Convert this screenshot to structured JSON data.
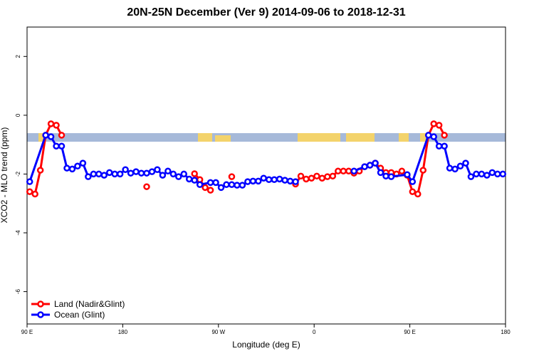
{
  "chart_data": {
    "type": "line",
    "title": "20N-25N December (Ver 9)   2014-09-06 to 2018-12-31",
    "xlabel": "Longitude (deg E)",
    "ylabel": "XCO2 - MLO trend (ppm)",
    "xlim": [
      90,
      540
    ],
    "ylim": [
      -7.1,
      3.0
    ],
    "xticks": [
      {
        "value": 90,
        "label": "90 E"
      },
      180,
      {
        "value": 270,
        "label": "90 W"
      },
      {
        "value": 360,
        "label": "0"
      },
      {
        "value": 450,
        "label": "90 E"
      },
      {
        "value": 540,
        "label": "180"
      }
    ],
    "yticks": [
      2,
      0,
      -2,
      -4,
      -6
    ],
    "legend": "bottom-left",
    "series": [
      {
        "name": "Land (Nadir&Glint)",
        "color": "#ff0000",
        "x": [
          92.5,
          97.5,
          102.5,
          107.5,
          112.5,
          117.5,
          122.5,
          127.5,
          202.5,
          207.5,
          247.5,
          252.5,
          257.5,
          262.5,
          267.5,
          282.5,
          287.5,
          342.5,
          347.5,
          352.5,
          357.5,
          362.5,
          367.5,
          372.5,
          377.5,
          382.5,
          387.5,
          392.5,
          397.5,
          402.5,
          407.5,
          412.5,
          417.5,
          422.5,
          427.5,
          432.5,
          437.5,
          442.5,
          447.5,
          452.5,
          457.5,
          462.5,
          467.5,
          472.5,
          477.5,
          482.5
        ],
        "values": [
          -2.6,
          -2.68,
          -1.87,
          -0.68,
          -0.29,
          -0.34,
          -0.68,
          null,
          -2.43,
          null,
          -1.99,
          -2.19,
          -2.46,
          -2.55,
          null,
          -2.09,
          null,
          -2.34,
          -2.07,
          -2.17,
          -2.14,
          -2.07,
          -2.14,
          -2.09,
          -2.07,
          -1.9,
          -1.9,
          -1.9,
          -1.97,
          -1.9,
          -1.75,
          -1.7,
          -1.63,
          -1.8,
          -1.95,
          -1.95,
          -2.0,
          -1.9,
          -2.04,
          -2.6,
          -2.68,
          -1.87,
          -0.68,
          -0.29,
          -0.34,
          -0.68
        ]
      },
      {
        "name": "Ocean (Glint)",
        "color": "#0000ff",
        "x": [
          92.5,
          107.5,
          112.5,
          117.5,
          122.5,
          127.5,
          132.5,
          137.5,
          142.5,
          147.5,
          152.5,
          157.5,
          162.5,
          167.5,
          172.5,
          177.5,
          182.5,
          187.5,
          192.5,
          197.5,
          202.5,
          207.5,
          212.5,
          217.5,
          222.5,
          227.5,
          232.5,
          237.5,
          242.5,
          247.5,
          252.5,
          262.5,
          267.5,
          272.5,
          277.5,
          282.5,
          287.5,
          292.5,
          297.5,
          302.5,
          307.5,
          312.5,
          317.5,
          322.5,
          327.5,
          332.5,
          337.5,
          342.5,
          370,
          397.5,
          407.5,
          412.5,
          417.5,
          422.5,
          427.5,
          432.5,
          447.5,
          452.5,
          467.5,
          472.5,
          477.5,
          482.5,
          487.5,
          492.5,
          497.5,
          502.5,
          507.5,
          512.5,
          517.5,
          522.5,
          527.5,
          532.5,
          537.5
        ],
        "values": [
          -2.26,
          -0.68,
          -0.73,
          -1.05,
          -1.05,
          -1.8,
          -1.83,
          -1.73,
          -1.63,
          -2.09,
          -2.0,
          -2.0,
          -2.04,
          -1.95,
          -2.0,
          -2.0,
          -1.85,
          -1.97,
          -1.92,
          -1.97,
          -1.97,
          -1.92,
          -1.85,
          -2.04,
          -1.9,
          -2.0,
          -2.09,
          -2.0,
          -2.17,
          -2.21,
          -2.36,
          -2.29,
          -2.29,
          -2.46,
          -2.36,
          -2.36,
          -2.38,
          -2.38,
          -2.26,
          -2.24,
          -2.24,
          -2.14,
          -2.19,
          -2.19,
          -2.17,
          -2.21,
          -2.24,
          -2.26,
          null,
          -1.9,
          -1.75,
          -1.7,
          -1.63,
          -1.95,
          -2.07,
          -2.09,
          -2.02,
          -2.26,
          -0.68,
          -0.73,
          -1.05,
          -1.05,
          -1.8,
          -1.83,
          -1.73,
          -1.63,
          -2.09,
          -2.0,
          -2.0,
          -2.04,
          -1.95,
          -2.0,
          -2.0
        ]
      }
    ]
  }
}
